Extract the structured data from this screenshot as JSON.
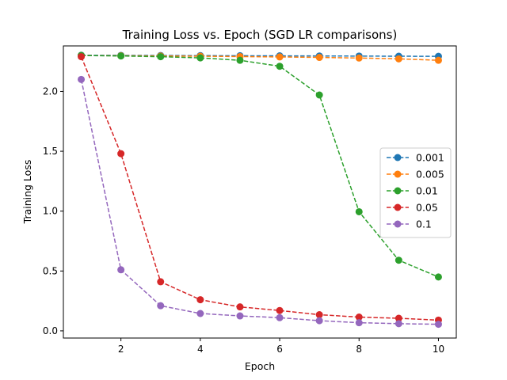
{
  "chart_data": {
    "type": "line",
    "title": "Training Loss vs. Epoch (SGD LR comparisons)",
    "xlabel": "Epoch",
    "ylabel": "Training Loss",
    "x": [
      1,
      2,
      3,
      4,
      5,
      6,
      7,
      8,
      9,
      10
    ],
    "xlim": [
      0.55,
      10.45
    ],
    "ylim": [
      -0.06,
      2.38
    ],
    "xticks": [
      2,
      4,
      6,
      8,
      10
    ],
    "xtick_labels": [
      "2",
      "4",
      "6",
      "8",
      "10"
    ],
    "yticks": [
      0.0,
      0.5,
      1.0,
      1.5,
      2.0
    ],
    "ytick_labels": [
      "0.0",
      "0.5",
      "1.0",
      "1.5",
      "2.0"
    ],
    "grid": false,
    "line_style": "dashed",
    "marker": "circle",
    "legend_position": "center-right",
    "series": [
      {
        "name": "0.001",
        "color": "#1f77b4",
        "values": [
          2.302,
          2.301,
          2.3,
          2.299,
          2.298,
          2.297,
          2.296,
          2.295,
          2.294,
          2.293
        ]
      },
      {
        "name": "0.005",
        "color": "#ff7f0e",
        "values": [
          2.3,
          2.298,
          2.296,
          2.294,
          2.291,
          2.288,
          2.284,
          2.279,
          2.272,
          2.26
        ]
      },
      {
        "name": "0.01",
        "color": "#2ca02c",
        "values": [
          2.3,
          2.296,
          2.29,
          2.28,
          2.26,
          2.21,
          1.97,
          0.995,
          0.59,
          0.45
        ]
      },
      {
        "name": "0.05",
        "color": "#d62728",
        "values": [
          2.29,
          1.48,
          0.41,
          0.26,
          0.2,
          0.17,
          0.135,
          0.115,
          0.105,
          0.09
        ]
      },
      {
        "name": "0.1",
        "color": "#9467bd",
        "values": [
          2.1,
          0.51,
          0.21,
          0.145,
          0.125,
          0.11,
          0.085,
          0.068,
          0.06,
          0.055
        ]
      }
    ]
  }
}
